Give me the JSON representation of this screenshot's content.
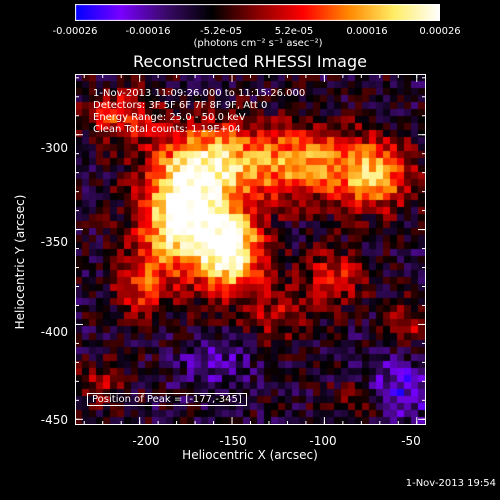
{
  "colorbar": {
    "tick_labels": [
      "-0.00026",
      "-0.00016",
      "-5.2e-05",
      "5.2e-05",
      "0.00016",
      "0.00026"
    ],
    "units_label": "(photons cm⁻² s⁻¹ asec⁻²)",
    "colormap": [
      "#0000ff",
      "#7a00ff",
      "#3a0a68",
      "#000000",
      "#8a0000",
      "#ff0000",
      "#ff8800",
      "#ffee66",
      "#ffffff"
    ]
  },
  "title": "Reconstructed RHESSI Image",
  "annotations": {
    "time_range": "1-Nov-2013 11:09:26.000 to 11:15:26.000",
    "detectors": "Detectors: 3F 5F 6F 7F 8F 9F, Att 0",
    "energy_range": "Energy Range: 25.0 - 50.0 keV",
    "method": "Clean     Total counts: 1.19E+04",
    "peak_position": "Position of Peak = [-177,-345]"
  },
  "axes": {
    "xlabel": "Heliocentric X (arcsec)",
    "ylabel": "Heliocentric Y (arcsec)",
    "xtick_labels": [
      "-200",
      "-150",
      "-100",
      "-50"
    ],
    "ytick_labels": [
      "-300",
      "-350",
      "-400",
      "-450"
    ]
  },
  "timestamp": "1-Nov-2013 19:54",
  "chart_data": {
    "type": "heatmap",
    "title": "Reconstructed RHESSI Image",
    "xlabel": "Heliocentric X (arcsec)",
    "ylabel": "Heliocentric Y (arcsec)",
    "xlim": [
      -235,
      -45
    ],
    "ylim": [
      -453,
      -268
    ],
    "xticks": [
      -200,
      -150,
      -100,
      -50
    ],
    "yticks": [
      -300,
      -350,
      -400,
      -450
    ],
    "colorbar_range": [
      -0.00026,
      0.00026
    ],
    "peak_position": [
      -177,
      -345
    ],
    "sources": [
      {
        "x": -177,
        "y": -345,
        "amp": 1.0,
        "sx": 16,
        "sy": 20
      },
      {
        "x": -150,
        "y": -362,
        "amp": 0.95,
        "sx": 12,
        "sy": 15
      },
      {
        "x": -165,
        "y": -315,
        "amp": 0.6,
        "sx": 18,
        "sy": 15
      },
      {
        "x": -115,
        "y": -315,
        "amp": 0.65,
        "sx": 28,
        "sy": 14
      },
      {
        "x": -72,
        "y": -322,
        "amp": 0.6,
        "sx": 14,
        "sy": 12
      },
      {
        "x": -210,
        "y": -290,
        "amp": 0.45,
        "sx": 14,
        "sy": 10
      },
      {
        "x": -200,
        "y": -380,
        "amp": 0.4,
        "sx": 10,
        "sy": 12
      },
      {
        "x": -95,
        "y": -375,
        "amp": 0.4,
        "sx": 12,
        "sy": 10
      },
      {
        "x": -55,
        "y": -400,
        "amp": 0.3,
        "sx": 9,
        "sy": 9
      },
      {
        "x": -125,
        "y": -395,
        "amp": 0.3,
        "sx": 12,
        "sy": 10
      },
      {
        "x": -220,
        "y": -430,
        "amp": 0.25,
        "sx": 10,
        "sy": 9
      },
      {
        "x": -80,
        "y": -440,
        "amp": 0.25,
        "sx": 12,
        "sy": 8
      }
    ],
    "negative_regions": [
      {
        "x": -60,
        "y": -435,
        "amp": 0.35,
        "sx": 14,
        "sy": 12
      },
      {
        "x": -160,
        "y": -420,
        "amp": 0.2,
        "sx": 14,
        "sy": 10
      }
    ]
  }
}
